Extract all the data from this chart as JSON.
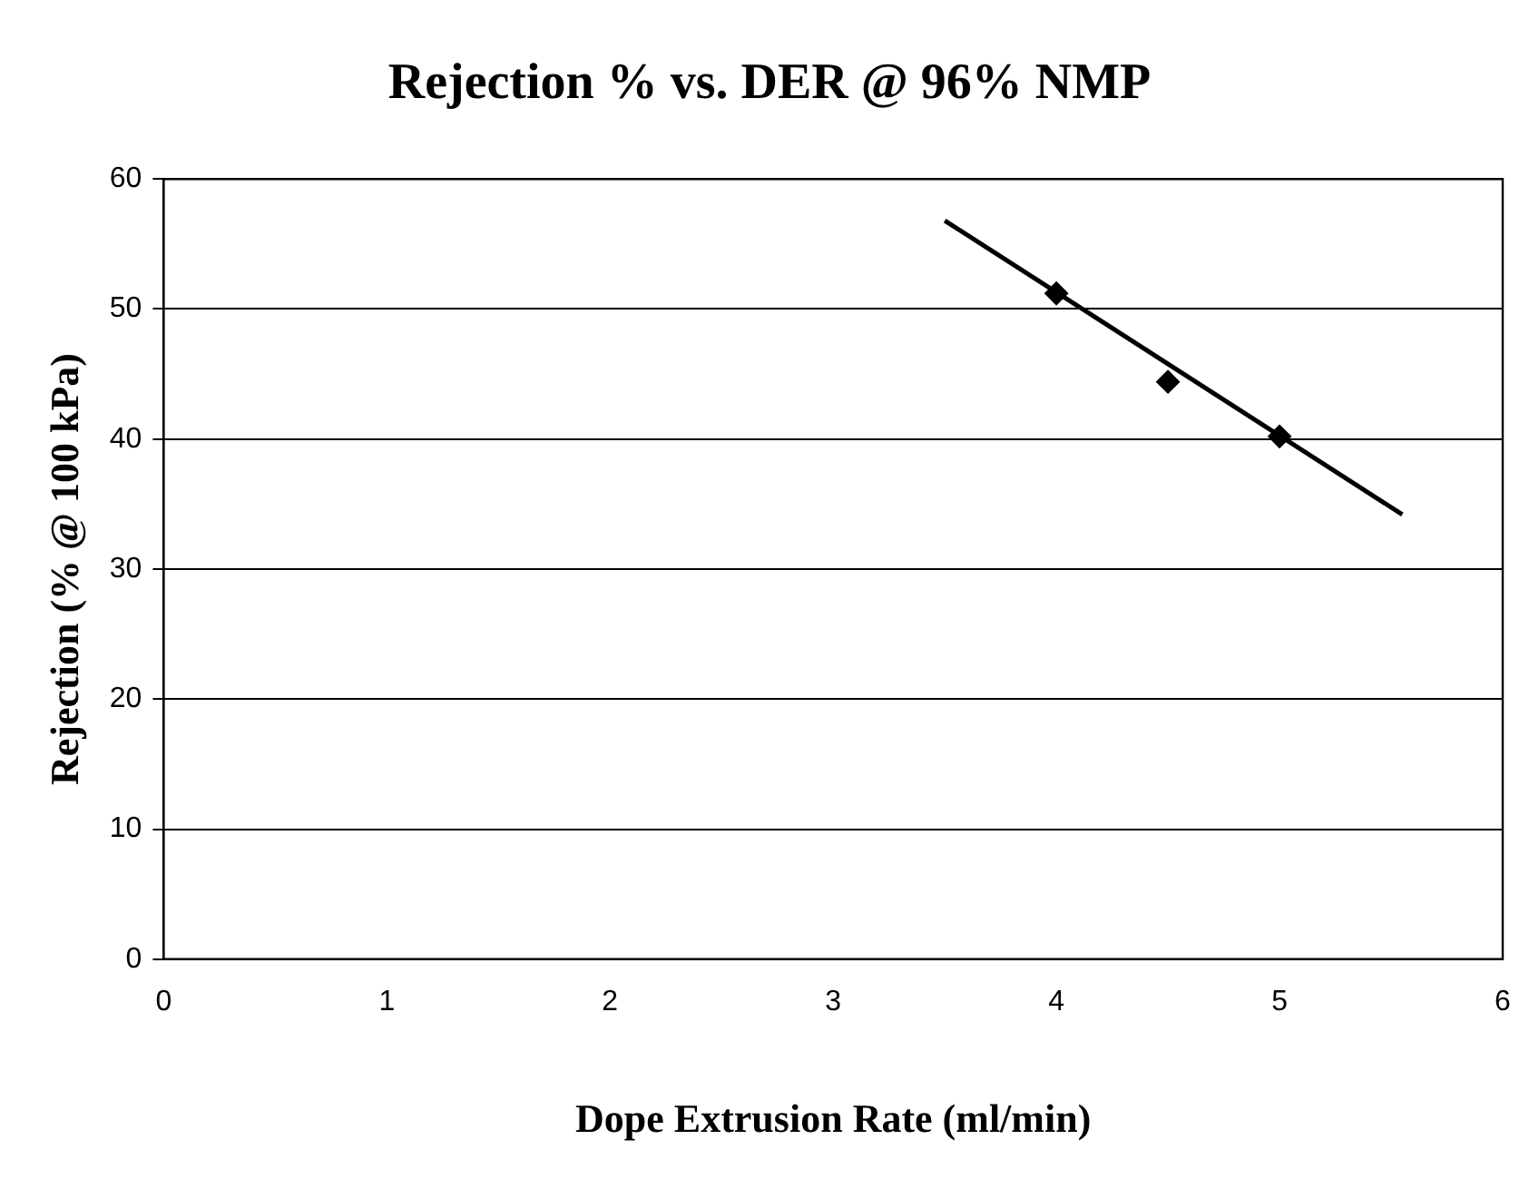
{
  "chart_data": {
    "type": "scatter",
    "title": "Rejection % vs. DER @ 96% NMP",
    "xlabel": "Dope Extrusion Rate (ml/min)",
    "ylabel": "Rejection (% @ 100 kPa)",
    "series": [
      {
        "type": "scatter",
        "color": "#000000",
        "x": [
          4,
          4.5,
          5
        ],
        "values": [
          51.2,
          44.4,
          40.2
        ],
        "marker": "diamond"
      },
      {
        "type": "line",
        "color": "#000000",
        "x": [
          3.5,
          5.55
        ],
        "values": [
          56.8,
          34.2
        ],
        "marker": "none",
        "line_style": "solid"
      }
    ],
    "xlim": [
      0,
      6
    ],
    "xticks": [
      0,
      1,
      2,
      3,
      4,
      5,
      6
    ],
    "ylim": [
      0,
      60
    ],
    "yticks": [
      0,
      10,
      20,
      30,
      40,
      50,
      60
    ],
    "grid": "y",
    "legend": false
  }
}
